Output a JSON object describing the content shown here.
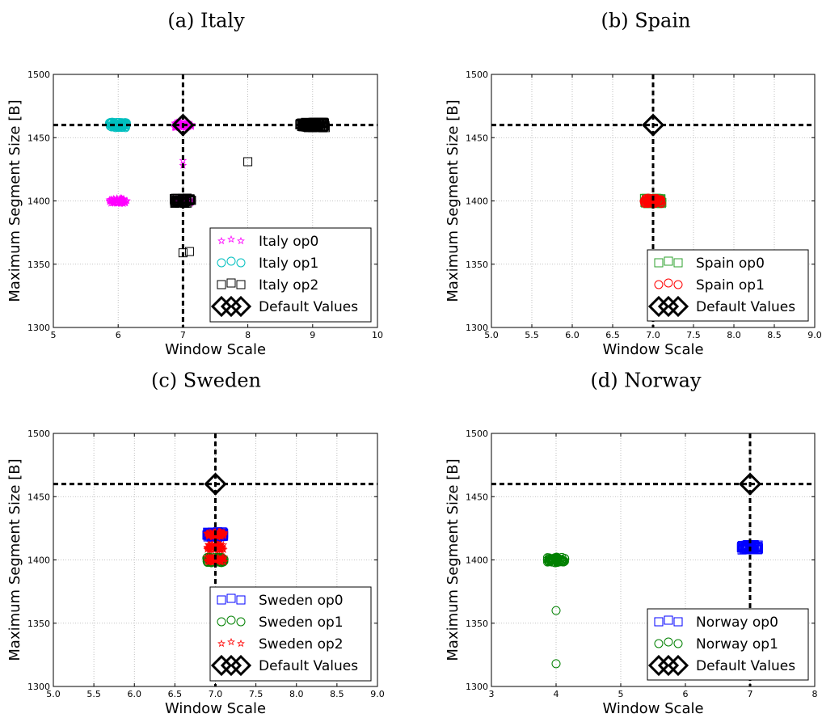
{
  "chart_data": [
    {
      "type": "scatter",
      "title": "(a) Italy",
      "xlabel": "Window Scale",
      "ylabel": "Maximum Segment Size [B]",
      "xlim": [
        5,
        10
      ],
      "ylim": [
        1300,
        1500
      ],
      "xticks": [
        "5",
        "6",
        "7",
        "8",
        "9",
        "10"
      ],
      "yticks": [
        "1300",
        "1350",
        "1400",
        "1450",
        "1500"
      ],
      "grid": true,
      "legend_position": "lower-right",
      "reference": {
        "x": 7,
        "y": 1460
      },
      "series": [
        {
          "name": "Italy  op0",
          "marker": "star",
          "color": "#ff00ff",
          "clusters": [
            {
              "x": 6,
              "y": 1400
            },
            {
              "x": 7,
              "y": 1400
            },
            {
              "x": 7,
              "y": 1460
            }
          ],
          "points": [
            {
              "x": 7,
              "y": 1432
            },
            {
              "x": 7,
              "y": 1428
            }
          ]
        },
        {
          "name": "Italy  op1",
          "marker": "circle",
          "color": "#00bfbf",
          "clusters": [
            {
              "x": 6,
              "y": 1460
            }
          ],
          "points": []
        },
        {
          "name": "Italy  op2",
          "marker": "square",
          "color": "#000000",
          "clusters": [
            {
              "x": 9,
              "y": 1460
            },
            {
              "x": 7,
              "y": 1400
            }
          ],
          "points": [
            {
              "x": 8,
              "y": 1431
            },
            {
              "x": 7,
              "y": 1359
            },
            {
              "x": 7.1,
              "y": 1360
            }
          ]
        },
        {
          "name": "Default Values",
          "marker": "diamond",
          "color": "#000000",
          "clusters": [],
          "points": [
            {
              "x": 7,
              "y": 1460
            }
          ]
        }
      ]
    },
    {
      "type": "scatter",
      "title": "(b) Spain",
      "xlabel": "Window Scale",
      "ylabel": "Maximum Segment Size [B]",
      "xlim": [
        5,
        9
      ],
      "ylim": [
        1300,
        1500
      ],
      "xticks": [
        "5.0",
        "5.5",
        "6.0",
        "6.5",
        "7.0",
        "7.5",
        "8.0",
        "8.5",
        "9.0"
      ],
      "yticks": [
        "1300",
        "1350",
        "1400",
        "1450",
        "1500"
      ],
      "grid": true,
      "legend_position": "lower-right",
      "reference": {
        "x": 7,
        "y": 1460
      },
      "series": [
        {
          "name": "Spain  op0",
          "marker": "square",
          "color": "#2ca02c",
          "clusters": [
            {
              "x": 7,
              "y": 1400
            }
          ],
          "points": []
        },
        {
          "name": "Spain  op1",
          "marker": "circle",
          "color": "#ff0000",
          "clusters": [
            {
              "x": 7,
              "y": 1400
            }
          ],
          "points": []
        },
        {
          "name": "Default Values",
          "marker": "diamond",
          "color": "#000000",
          "clusters": [],
          "points": [
            {
              "x": 7,
              "y": 1460
            }
          ]
        }
      ]
    },
    {
      "type": "scatter",
      "title": "(c) Sweden",
      "xlabel": "Window Scale",
      "ylabel": "Maximum Segment Size [B]",
      "xlim": [
        5,
        9
      ],
      "ylim": [
        1300,
        1500
      ],
      "xticks": [
        "5.0",
        "5.5",
        "6.0",
        "6.5",
        "7.0",
        "7.5",
        "8.0",
        "8.5",
        "9.0"
      ],
      "yticks": [
        "1300",
        "1350",
        "1400",
        "1450",
        "1500"
      ],
      "grid": true,
      "legend_position": "lower-right",
      "reference": {
        "x": 7,
        "y": 1460
      },
      "series": [
        {
          "name": "Sweden  op0",
          "marker": "square",
          "color": "#0000ff",
          "clusters": [
            {
              "x": 7,
              "y": 1420
            }
          ],
          "points": []
        },
        {
          "name": "Sweden  op1",
          "marker": "circle",
          "color": "#008000",
          "clusters": [
            {
              "x": 7,
              "y": 1400
            }
          ],
          "points": []
        },
        {
          "name": "Sweden  op2",
          "marker": "star",
          "color": "#ff0000",
          "clusters": [
            {
              "x": 7,
              "y": 1420
            },
            {
              "x": 7,
              "y": 1400
            },
            {
              "x": 7,
              "y": 1410
            }
          ],
          "points": []
        },
        {
          "name": "Default Values",
          "marker": "diamond",
          "color": "#000000",
          "clusters": [],
          "points": [
            {
              "x": 7,
              "y": 1460
            }
          ]
        }
      ]
    },
    {
      "type": "scatter",
      "title": "(d) Norway",
      "xlabel": "Window Scale",
      "ylabel": "Maximum Segment Size [B]",
      "xlim": [
        3,
        8
      ],
      "ylim": [
        1300,
        1500
      ],
      "xticks": [
        "3",
        "4",
        "5",
        "6",
        "7",
        "8"
      ],
      "yticks": [
        "1300",
        "1350",
        "1400",
        "1450",
        "1500"
      ],
      "grid": true,
      "legend_position": "lower-right",
      "reference": {
        "x": 7,
        "y": 1460
      },
      "series": [
        {
          "name": "Norway  op0",
          "marker": "square",
          "color": "#0000ff",
          "clusters": [
            {
              "x": 7,
              "y": 1410
            }
          ],
          "points": []
        },
        {
          "name": "Norway  op1",
          "marker": "circle",
          "color": "#008000",
          "clusters": [
            {
              "x": 4,
              "y": 1400
            }
          ],
          "points": [
            {
              "x": 4,
              "y": 1360
            },
            {
              "x": 4,
              "y": 1318
            }
          ]
        },
        {
          "name": "Default Values",
          "marker": "diamond",
          "color": "#000000",
          "clusters": [],
          "points": [
            {
              "x": 7,
              "y": 1460
            }
          ]
        }
      ]
    }
  ]
}
